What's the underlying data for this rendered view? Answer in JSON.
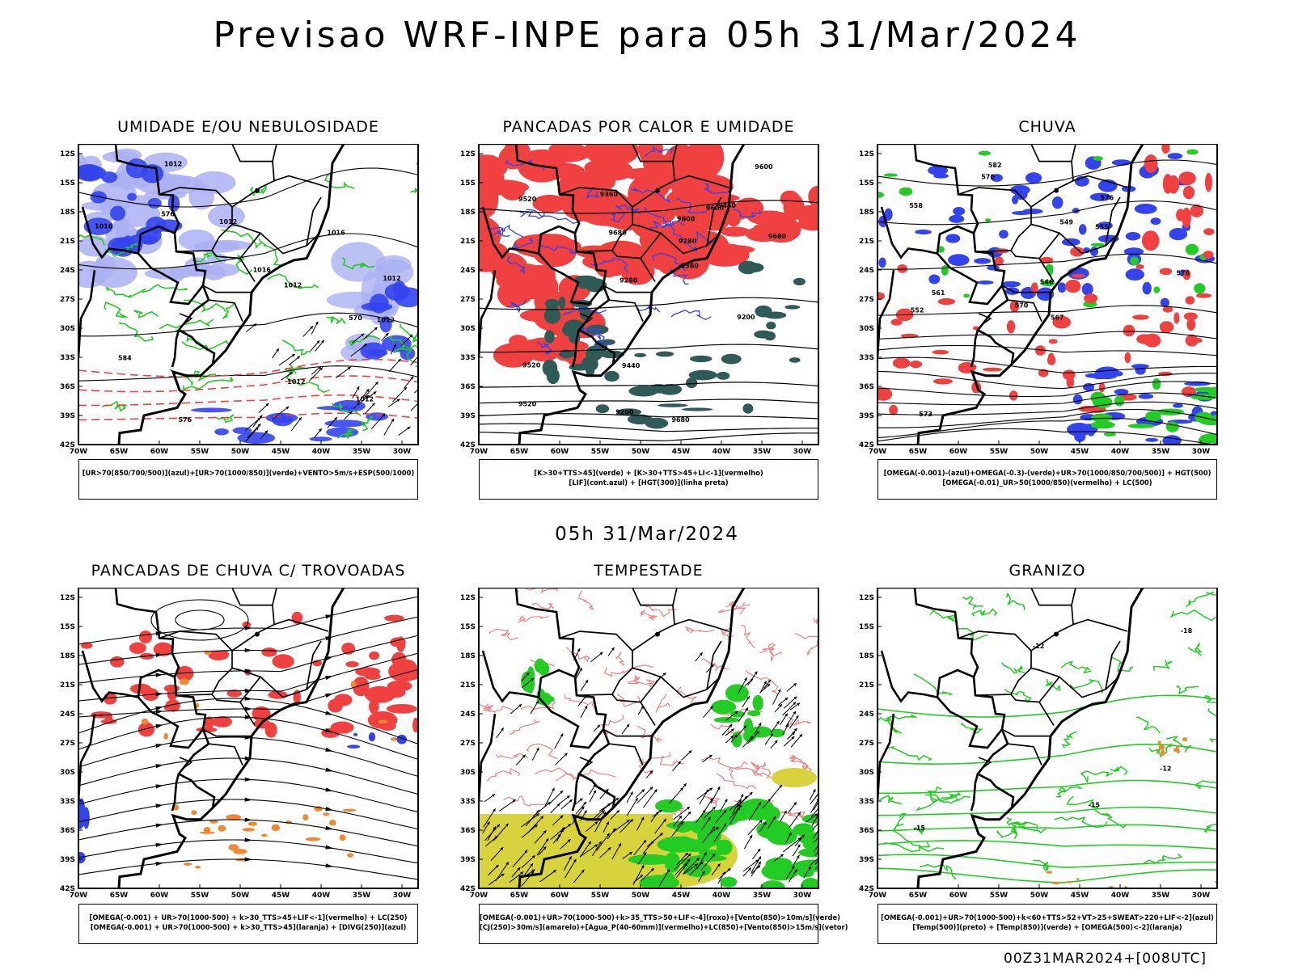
{
  "header": {
    "title": "Previsao WRF-INPE  para 05h 31/Mar/2024"
  },
  "row_label": "05h 31/Mar/2024",
  "footer": "00Z31MAR2024+[008UTC]",
  "axes": {
    "lat_ticks": [
      "12S",
      "15S",
      "18S",
      "21S",
      "24S",
      "27S",
      "30S",
      "33S",
      "36S",
      "39S",
      "42S"
    ],
    "lon_ticks": [
      "70W",
      "65W",
      "60W",
      "55W",
      "50W",
      "45W",
      "40W",
      "35W",
      "30W"
    ]
  },
  "panels": [
    {
      "title": "UMIDADE E/OU NEBULOSIDADE",
      "legend": [
        "[UR>70(850/700/500)](azul)+[UR>70(1000/850)](verde)+VENTO>5m/s+ESP(500/1000)"
      ],
      "labels": [
        "1012",
        "1012",
        "1016",
        "1012",
        "576",
        "576",
        "1016",
        "1012",
        "1012",
        "1012",
        "1016",
        "1012",
        "584",
        "570"
      ]
    },
    {
      "title": "PANCADAS POR CALOR E UMIDADE",
      "legend": [
        "[K>30+TTS>45](verde) + [K>30+TTS>45+LI<-1](vermelho)",
        "[LIF](cont.azul) + [HGT(300)](linha preta)"
      ],
      "labels": [
        "9680",
        "9680",
        "9680",
        "9600",
        "9520",
        "9600",
        "9600",
        "9520",
        "9520",
        "9440",
        "9440",
        "9360",
        "9360",
        "9280",
        "9280",
        "9200",
        "9200"
      ]
    },
    {
      "title": "CHUVA",
      "legend": [
        "[OMEGA(-0.001)-(azul)+OMEGA(-0.3)-(verde)+UR>70(1000/850/700/500)] + HGT(500)",
        "[OMEGA(-0.01)_UR>50(1000/850)(vermelho) + LC(500)"
      ],
      "labels": [
        "582",
        "576",
        "576",
        "570",
        "567",
        "561",
        "558",
        "555",
        "552",
        "549",
        "546",
        "573",
        "570"
      ]
    },
    {
      "title": "PANCADAS DE CHUVA C/ TROVOADAS",
      "legend": [
        "[OMEGA(-0.001) + UR>70(1000-500) + k>30_TTS>45+LIF<-1](vermelho) + LC(250)",
        "[OMEGA(-0.001) + UR>70(1000-500) + k>30_TTS>45](laranja) + [DIVG(250)](azul)"
      ],
      "labels": []
    },
    {
      "title": "TEMPESTADE",
      "legend": [
        "[OMEGA(-0.001)+UR>70(1000-500)+k>35_TTS>50+LIF<-4](roxo)+[Vento(850)>10m/s](verde)",
        "[CJ(250)>30m/s](amarelo)+[Agua_P(40-60mm)](vermelho)+LC(850)+[Vento(850)>15m/s](vetor)"
      ],
      "labels": []
    },
    {
      "title": "GRANIZO",
      "legend": [
        "[OMEGA(-0.001)+UR>70(1000-500)+k<60+TTS>52+VT>25+SWEAT>220+LIF<-2](azul)",
        "[Temp(500)](preto) + [Temp(850)](verde) + [OMEGA(500)<-2](laranja)"
      ],
      "labels": [
        "-12",
        "-15",
        "-15",
        "-18",
        "-12"
      ]
    }
  ],
  "colors": {
    "blue": "#3344ee",
    "lightblue": "#aab0f2",
    "green": "#22cc22",
    "red": "#f04040",
    "teal": "#2f5a55",
    "orange": "#f08830",
    "yellow": "#d8d23c",
    "salmon": "#f08080"
  }
}
